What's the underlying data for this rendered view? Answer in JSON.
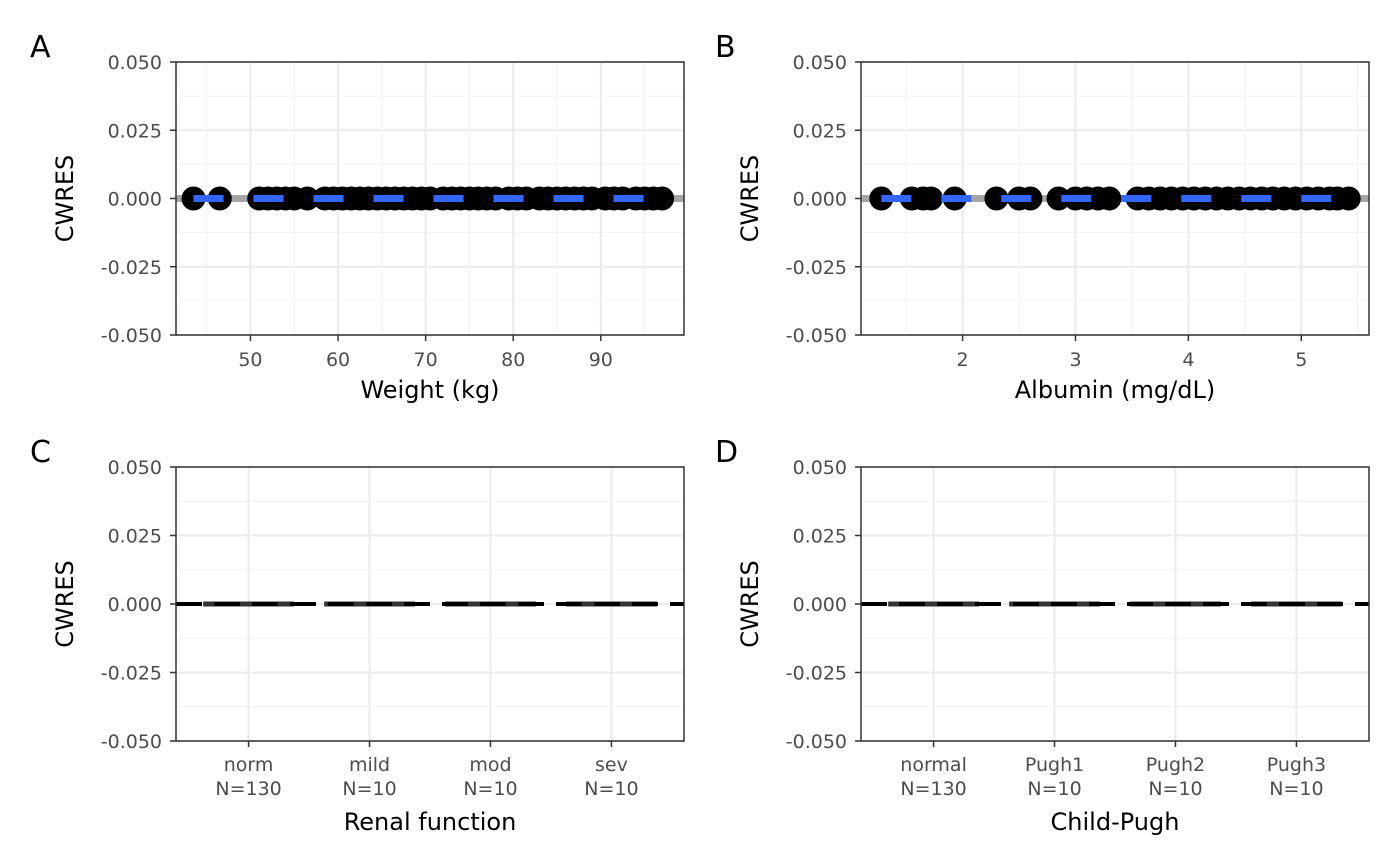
{
  "chart_data": [
    {
      "panel": "A",
      "type": "scatter",
      "xlabel": "Weight (kg)",
      "ylabel": "CWRES",
      "xlim": [
        41.5,
        99.5
      ],
      "ylim": [
        -0.05,
        0.05
      ],
      "x_ticks": [
        "50",
        "60",
        "70",
        "80",
        "90"
      ],
      "x_tick_values": [
        50,
        60,
        70,
        80,
        90
      ],
      "y_ticks": [
        "-0.050",
        "-0.025",
        "0.000",
        "0.025",
        "0.050"
      ],
      "y_tick_values": [
        -0.05,
        -0.025,
        0,
        0.025,
        0.05
      ],
      "grid": true,
      "points_x": [
        43.5,
        46.5,
        51,
        52,
        53,
        54,
        55,
        56.5,
        58.5,
        59.5,
        60.5,
        61.5,
        62.5,
        63.5,
        64.5,
        65.5,
        66.5,
        67.5,
        68.5,
        69.5,
        70.5,
        72,
        73,
        74,
        75,
        76,
        77,
        78,
        79.5,
        80.5,
        81.5,
        83,
        84,
        85,
        86,
        87,
        88,
        89,
        90.5,
        91.5,
        92.5,
        94,
        95,
        96,
        97
      ],
      "points_y": 0,
      "reference_line": 0,
      "smooth_line": 0,
      "colors": {
        "points": "#000000",
        "reference": "#a6a6a6",
        "smooth": "#3366ff"
      }
    },
    {
      "panel": "B",
      "type": "scatter",
      "xlabel": "Albumin (mg/dL)",
      "ylabel": "CWRES",
      "xlim": [
        1.1,
        5.6
      ],
      "ylim": [
        -0.05,
        0.05
      ],
      "x_ticks": [
        "2",
        "3",
        "4",
        "5"
      ],
      "x_tick_values": [
        2,
        3,
        4,
        5
      ],
      "y_ticks": [
        "-0.050",
        "-0.025",
        "0.000",
        "0.025",
        "0.050"
      ],
      "y_tick_values": [
        -0.05,
        -0.025,
        0,
        0.025,
        0.05
      ],
      "grid": true,
      "points_x": [
        1.28,
        1.55,
        1.65,
        1.72,
        1.93,
        2.3,
        2.5,
        2.6,
        2.85,
        3.0,
        3.1,
        3.2,
        3.3,
        3.55,
        3.65,
        3.75,
        3.85,
        3.95,
        4.05,
        4.15,
        4.25,
        4.35,
        4.45,
        4.55,
        4.65,
        4.75,
        4.85,
        4.95,
        5.05,
        5.15,
        5.25,
        5.32,
        5.42
      ],
      "points_y": 0,
      "reference_line": 0,
      "smooth_line": 0,
      "colors": {
        "points": "#000000",
        "reference": "#a6a6a6",
        "smooth": "#3366ff"
      }
    },
    {
      "panel": "C",
      "type": "box",
      "xlabel": "Renal function",
      "ylabel": "CWRES",
      "categories": [
        {
          "name": "norm",
          "n": "N=130",
          "value": 0
        },
        {
          "name": "mild",
          "n": "N=10",
          "value": 0
        },
        {
          "name": "mod",
          "n": "N=10",
          "value": 0
        },
        {
          "name": "sev",
          "n": "N=10",
          "value": 0
        }
      ],
      "ylim": [
        -0.05,
        0.05
      ],
      "y_ticks": [
        "-0.050",
        "-0.025",
        "0.000",
        "0.025",
        "0.050"
      ],
      "y_tick_values": [
        -0.05,
        -0.025,
        0,
        0.025,
        0.05
      ],
      "grid": true,
      "reference_line": 0
    },
    {
      "panel": "D",
      "type": "box",
      "xlabel": "Child-Pugh",
      "ylabel": "CWRES",
      "categories": [
        {
          "name": "normal",
          "n": "N=130",
          "value": 0
        },
        {
          "name": "Pugh1",
          "n": "N=10",
          "value": 0
        },
        {
          "name": "Pugh2",
          "n": "N=10",
          "value": 0
        },
        {
          "name": "Pugh3",
          "n": "N=10",
          "value": 0
        }
      ],
      "ylim": [
        -0.05,
        0.05
      ],
      "y_ticks": [
        "-0.050",
        "-0.025",
        "0.000",
        "0.025",
        "0.050"
      ],
      "y_tick_values": [
        -0.05,
        -0.025,
        0,
        0.025,
        0.05
      ],
      "grid": true,
      "reference_line": 0
    }
  ]
}
